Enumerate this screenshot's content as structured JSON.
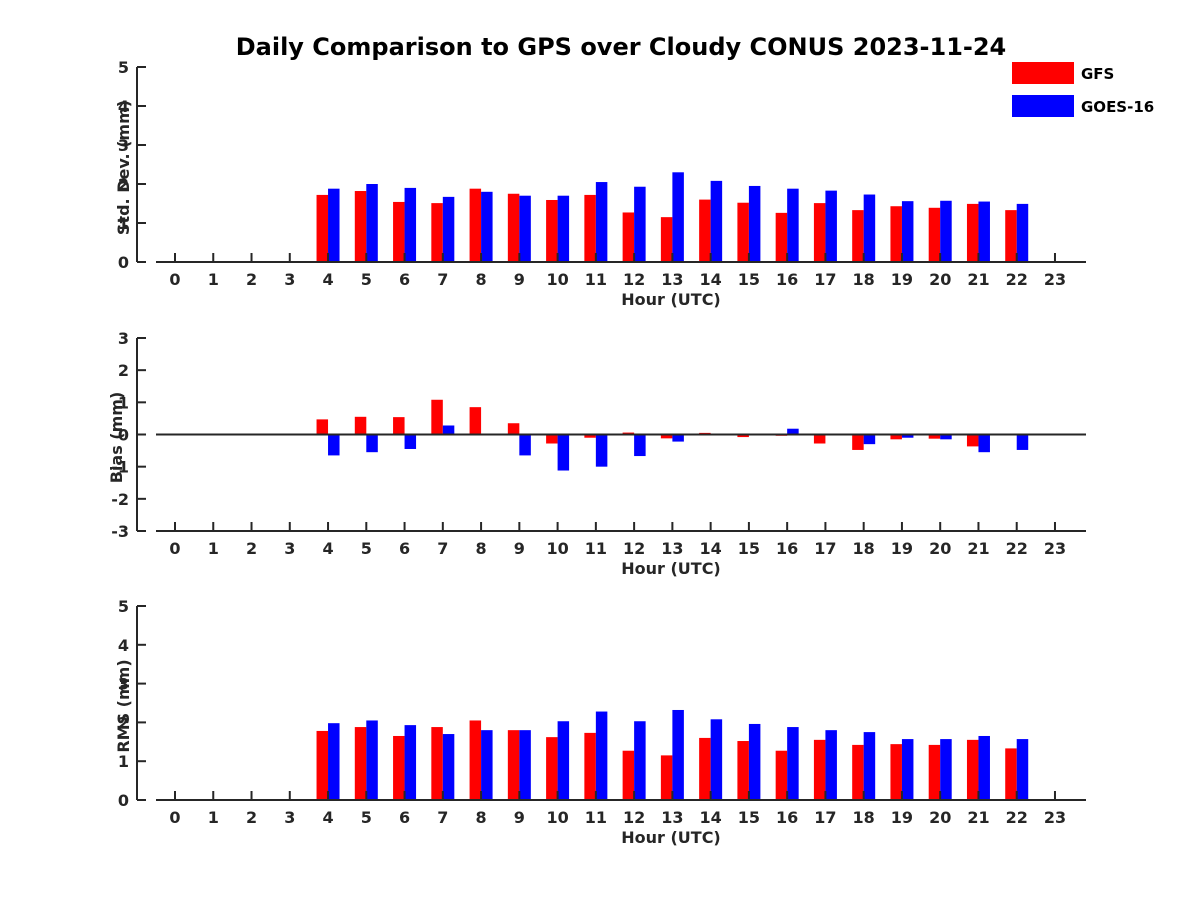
{
  "chart_data": {
    "title": "Daily Comparison to GPS over Cloudy CONUS 2023-11-24",
    "type": "bar",
    "colors": {
      "GFS": "#ff0000",
      "GOES-16": "#0000ff"
    },
    "legend": {
      "placement": "top-right",
      "entries": [
        "GFS",
        "GOES-16"
      ]
    },
    "categories": [
      0,
      1,
      2,
      3,
      4,
      5,
      6,
      7,
      8,
      9,
      10,
      11,
      12,
      13,
      14,
      15,
      16,
      17,
      18,
      19,
      20,
      21,
      22,
      23
    ],
    "panels": [
      {
        "id": "std",
        "xlabel": "Hour (UTC)",
        "ylabel": "Std. Dev. (mm)",
        "ylim": [
          0,
          5
        ],
        "yticks": [
          0,
          1,
          2,
          3,
          4,
          5
        ],
        "series": [
          {
            "name": "GFS",
            "values": [
              null,
              null,
              null,
              null,
              1.72,
              1.82,
              1.54,
              1.51,
              1.88,
              1.75,
              1.59,
              1.72,
              1.27,
              1.15,
              1.6,
              1.52,
              1.26,
              1.51,
              1.33,
              1.43,
              1.39,
              1.49,
              1.33,
              null
            ]
          },
          {
            "name": "GOES-16",
            "values": [
              null,
              null,
              null,
              null,
              1.88,
              2.0,
              1.9,
              1.67,
              1.8,
              1.7,
              1.7,
              2.05,
              1.93,
              2.3,
              2.08,
              1.95,
              1.88,
              1.83,
              1.73,
              1.56,
              1.57,
              1.55,
              1.49,
              null
            ]
          }
        ]
      },
      {
        "id": "bias",
        "xlabel": "Hour (UTC)",
        "ylabel": "Bias (mm)",
        "ylim": [
          -3,
          3
        ],
        "yticks": [
          -3,
          -2,
          -1,
          0,
          1,
          2,
          3
        ],
        "series": [
          {
            "name": "GFS",
            "values": [
              null,
              null,
              null,
              null,
              0.47,
              0.55,
              0.54,
              1.08,
              0.85,
              0.35,
              -0.28,
              -0.1,
              0.06,
              -0.12,
              0.05,
              -0.08,
              -0.04,
              -0.28,
              -0.48,
              -0.15,
              -0.13,
              -0.37,
              0.0,
              null
            ]
          },
          {
            "name": "GOES-16",
            "values": [
              null,
              null,
              null,
              null,
              -0.65,
              -0.55,
              -0.45,
              0.28,
              0.03,
              -0.65,
              -1.12,
              -1.0,
              -0.67,
              -0.22,
              0.03,
              -0.03,
              0.18,
              0.0,
              -0.3,
              -0.1,
              -0.15,
              -0.55,
              -0.48,
              null
            ]
          }
        ]
      },
      {
        "id": "rms",
        "xlabel": "Hour (UTC)",
        "ylabel": "RMS (mm)",
        "ylim": [
          0,
          5
        ],
        "yticks": [
          0,
          1,
          2,
          3,
          4,
          5
        ],
        "series": [
          {
            "name": "GFS",
            "values": [
              null,
              null,
              null,
              null,
              1.78,
              1.88,
              1.65,
              1.88,
              2.05,
              1.8,
              1.62,
              1.73,
              1.27,
              1.15,
              1.6,
              1.52,
              1.27,
              1.55,
              1.42,
              1.44,
              1.42,
              1.55,
              1.33,
              null
            ]
          },
          {
            "name": "GOES-16",
            "values": [
              null,
              null,
              null,
              null,
              1.98,
              2.05,
              1.93,
              1.7,
              1.8,
              1.8,
              2.03,
              2.28,
              2.03,
              2.32,
              2.08,
              1.96,
              1.88,
              1.8,
              1.75,
              1.57,
              1.57,
              1.65,
              1.57,
              null
            ]
          }
        ]
      }
    ]
  }
}
